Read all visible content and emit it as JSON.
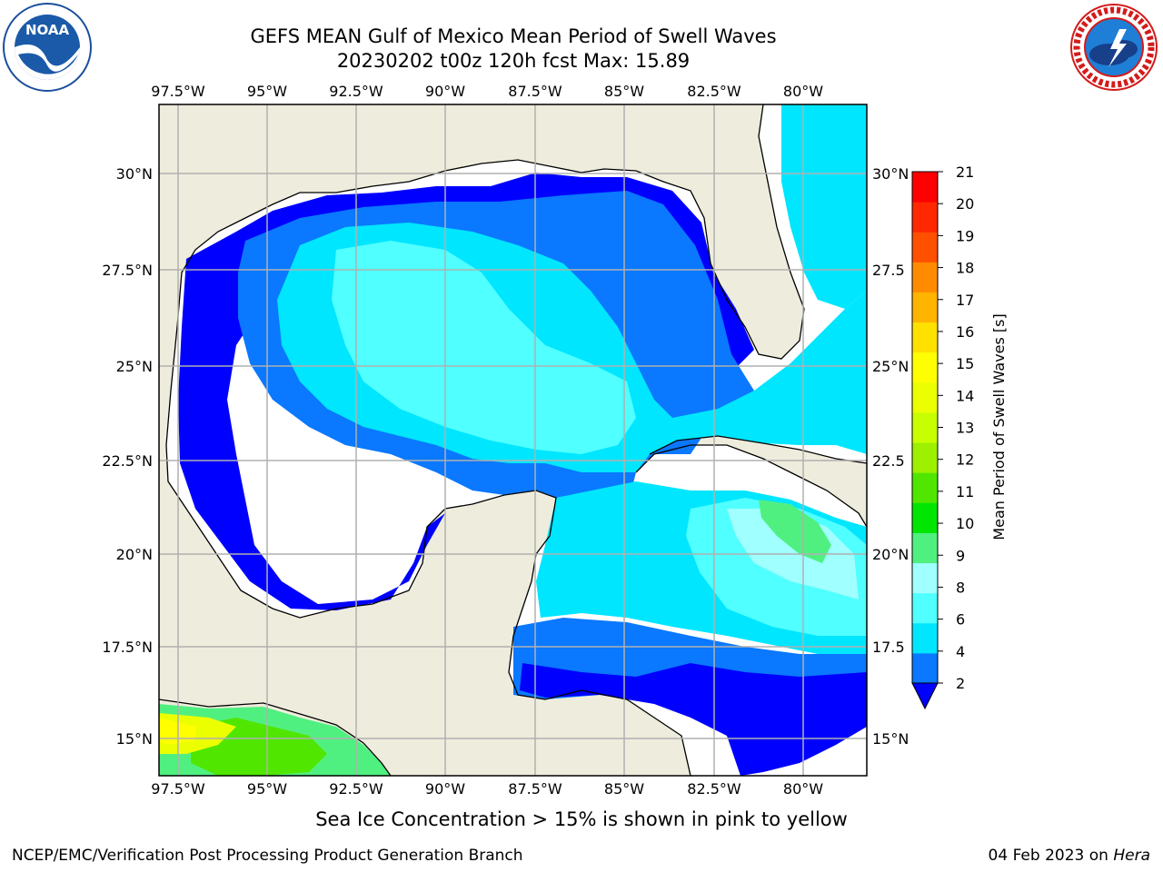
{
  "header": {
    "title_line1": "GEFS MEAN Gulf of Mexico Mean Period of Swell Waves",
    "title_line2": "20230202 t00z 120h fcst   Max: 15.89"
  },
  "logos": {
    "left": {
      "name": "noaa-logo",
      "text": "NOAA"
    },
    "right": {
      "name": "nws-logo",
      "text": "NATIONAL WEATHER SERVICE"
    }
  },
  "map": {
    "lon_labels": [
      "97.5°W",
      "95°W",
      "92.5°W",
      "90°W",
      "87.5°W",
      "85°W",
      "82.5°W",
      "80°W"
    ],
    "lat_labels_left": [
      "30°N",
      "27.5°N",
      "25°N",
      "22.5°N",
      "20°N",
      "17.5°N",
      "15°N"
    ],
    "lat_labels_right": [
      "30°N",
      "27.5",
      "25°N",
      "22.5",
      "20°N",
      "17.5",
      "15°N"
    ],
    "land_color": "#eeecdc",
    "no_data_color": "#ffffff"
  },
  "colorbar": {
    "label": "Mean Period of Swell Waves [s]",
    "ticks": [
      "2",
      "4",
      "6",
      "8",
      "9",
      "10",
      "11",
      "12",
      "13",
      "14",
      "15",
      "16",
      "17",
      "18",
      "19",
      "20",
      "21"
    ],
    "colors": [
      "#0000ff",
      "#0a78ff",
      "#00e6ff",
      "#50ffff",
      "#a0ffff",
      "#50f080",
      "#00e600",
      "#50e600",
      "#9cf000",
      "#c8ff00",
      "#ebff00",
      "#ffff00",
      "#ffe100",
      "#ffb400",
      "#ff8c00",
      "#ff5000",
      "#ff2800",
      "#ff0000"
    ]
  },
  "caption": "Sea Ice Concentration > 15% is shown in pink to yellow",
  "footer": {
    "left": "NCEP/EMC/Verification Post Processing Product Generation Branch",
    "date": "04 Feb 2023",
    "on": " on ",
    "machine": "Hera"
  }
}
